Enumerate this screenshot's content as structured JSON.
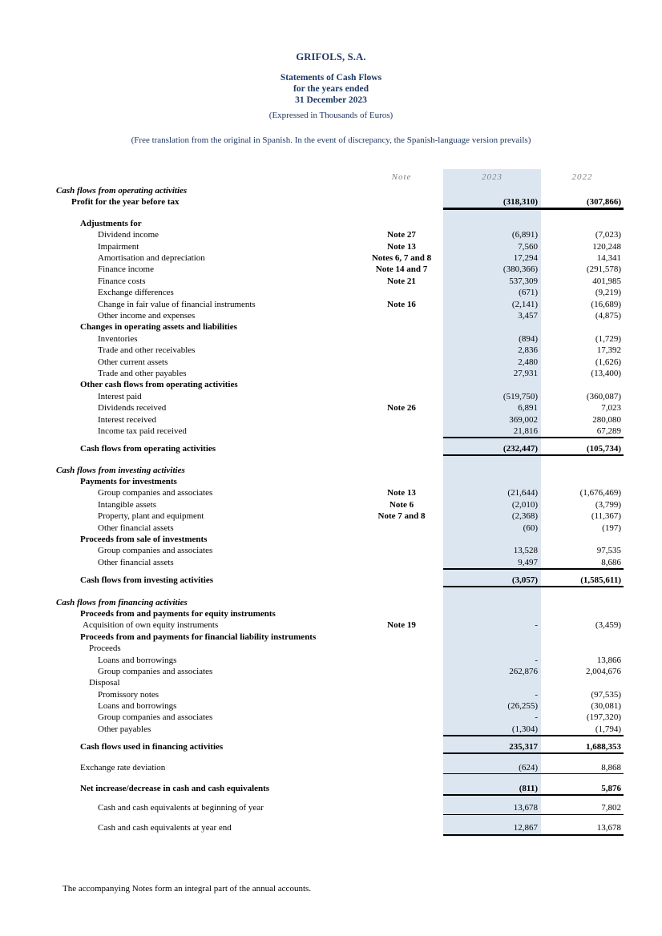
{
  "header": {
    "company": "GRIFOLS, S.A.",
    "title_line1": "Statements of Cash Flows",
    "title_line2": "for the years ended",
    "title_line3": "31 December 2023",
    "units_note": "(Expressed in Thousands of Euros)",
    "translation_note": "(Free translation from the original in Spanish. In the event of discrepancy, the Spanish-language version prevails)"
  },
  "footer": {
    "text": "The accompanying Notes form an integral part of the annual accounts."
  },
  "colors": {
    "heading_navy": "#1f3864",
    "column_2023_highlight": "#dce6f1",
    "column_header_gray": "#7f7f86",
    "body_text": "#000000"
  },
  "table": {
    "columns": [
      "Note",
      "2023",
      "2022"
    ],
    "rows": [
      {
        "label": "Cash flows from operating activities",
        "style": "section",
        "gap": 2
      },
      {
        "label": "Profit for the year before tax",
        "style": "profit",
        "v2023": "(318,310)",
        "v2022": "(307,866)",
        "rule": "thick"
      },
      {
        "label": "Adjustments for",
        "style": "subhead",
        "gap": 10
      },
      {
        "label": "Dividend income",
        "note": "Note 27",
        "style": "item",
        "v2023": "(6,891)",
        "v2022": "(7,023)"
      },
      {
        "label": "Impairment",
        "note": "Note 13",
        "style": "item",
        "v2023": "7,560",
        "v2022": "120,248"
      },
      {
        "label": "Amortisation and depreciation",
        "note": "Notes 6, 7 and 8",
        "style": "item",
        "v2023": "17,294",
        "v2022": "14,341"
      },
      {
        "label": "Finance income",
        "note": "Note 14 and 7",
        "style": "item",
        "v2023": "(380,366)",
        "v2022": "(291,578)"
      },
      {
        "label": "Finance costs",
        "note": "Note 21",
        "style": "item",
        "v2023": "537,309",
        "v2022": "401,985"
      },
      {
        "label": "Exchange differences",
        "style": "item",
        "v2023": "(671)",
        "v2022": "(9,219)"
      },
      {
        "label": "Change in fair value of financial instruments",
        "note": "Note 16",
        "style": "item",
        "v2023": "(2,141)",
        "v2022": "(16,689)"
      },
      {
        "label": "Other income and expenses",
        "style": "item",
        "v2023": "3,457",
        "v2022": "(4,875)"
      },
      {
        "label": "Changes in operating assets and liabilities",
        "style": "subhead"
      },
      {
        "label": "Inventories",
        "style": "item",
        "v2023": "(894)",
        "v2022": "(1,729)"
      },
      {
        "label": "Trade and other receivables",
        "style": "item",
        "v2023": "2,836",
        "v2022": "17,392"
      },
      {
        "label": "Other current assets",
        "style": "item",
        "v2023": "2,480",
        "v2022": "(1,626)"
      },
      {
        "label": "Trade and other payables",
        "style": "item",
        "v2023": "27,931",
        "v2022": "(13,400)"
      },
      {
        "label": "Other cash flows from operating activities",
        "style": "subhead"
      },
      {
        "label": "Interest paid",
        "style": "item",
        "v2023": "(519,750)",
        "v2022": "(360,087)"
      },
      {
        "label": "Dividends received",
        "note": "Note 26",
        "style": "item",
        "v2023": "6,891",
        "v2022": "7,023"
      },
      {
        "label": "Interest received",
        "style": "item",
        "v2023": "369,002",
        "v2022": "280,080"
      },
      {
        "label": "Income tax paid received",
        "style": "item",
        "v2023": "21,816",
        "v2022": "67,289",
        "rule": "thin"
      },
      {
        "label": "Cash flows from operating activities",
        "style": "total",
        "v2023": "(232,447)",
        "v2022": "(105,734)",
        "gap": 6,
        "rule": "thick"
      },
      {
        "label": "Cash flows from investing activities",
        "style": "section",
        "gap": 10
      },
      {
        "label": "Payments for investments",
        "style": "subhead"
      },
      {
        "label": "Group companies and associates",
        "note": "Note 13",
        "style": "item",
        "v2023": "(21,644)",
        "v2022": "(1,676,469)"
      },
      {
        "label": "Intangible assets",
        "note": "Note 6",
        "style": "item",
        "v2023": "(2,010)",
        "v2022": "(3,799)"
      },
      {
        "label": "Property, plant and equipment",
        "note": "Note 7 and 8",
        "style": "item",
        "v2023": "(2,368)",
        "v2022": "(11,367)"
      },
      {
        "label": "Other financial assets",
        "style": "item",
        "v2023": "(60)",
        "v2022": "(197)"
      },
      {
        "label": "Proceeds from sale of investments",
        "style": "subhead"
      },
      {
        "label": "Group companies and associates",
        "style": "item",
        "v2023": "13,528",
        "v2022": "97,535"
      },
      {
        "label": "Other financial assets",
        "style": "item",
        "v2023": "9,497",
        "v2022": "8,686",
        "rule": "thin"
      },
      {
        "label": "Cash flows from investing activities",
        "style": "total",
        "v2023": "(3,057)",
        "v2022": "(1,585,611)",
        "gap": 6,
        "rule": "thick"
      },
      {
        "label": "Cash flows from financing activities",
        "style": "section",
        "gap": 11
      },
      {
        "label": "Proceeds from and payments for equity instruments",
        "style": "subhead"
      },
      {
        "label": "Acquisition of own equity instruments",
        "note": "Note 19",
        "style": "acq",
        "v2023": "-",
        "v2022": "(3,459)"
      },
      {
        "label": "Proceeds from and payments for financial liability instruments",
        "style": "subhead"
      },
      {
        "label": "Proceeds",
        "style": "sub"
      },
      {
        "label": "Loans and borrowings",
        "style": "item",
        "v2023": "-",
        "v2022": "13,866"
      },
      {
        "label": "Group companies and associates",
        "style": "item",
        "v2023": "262,876",
        "v2022": "2,004,676"
      },
      {
        "label": "Disposal",
        "style": "sub"
      },
      {
        "label": "Promissory notes",
        "style": "item",
        "v2023": "-",
        "v2022": "(97,535)"
      },
      {
        "label": "Loans and borrowings",
        "style": "item",
        "v2023": "(26,255)",
        "v2022": "(30,081)"
      },
      {
        "label": "Group companies and associates",
        "style": "item",
        "v2023": "-",
        "v2022": "(197,320)"
      },
      {
        "label": "Other payables",
        "style": "item",
        "v2023": "(1,304)",
        "v2022": "(1,794)",
        "rule": "thin"
      },
      {
        "label": "Cash flows used in financing activities",
        "style": "total",
        "v2023": "235,317",
        "v2022": "1,688,353",
        "gap": 6,
        "rule": "thick"
      },
      {
        "label": "Exchange rate deviation",
        "style": "plain",
        "v2023": "(624)",
        "v2022": "8,868",
        "gap": 9,
        "rule": "thin"
      },
      {
        "label": "Net increase/decrease in cash and cash equivalents",
        "style": "total",
        "v2023": "(811)",
        "v2022": "5,876",
        "gap": 10,
        "rule": "thick"
      },
      {
        "label": "Cash and cash equivalents at beginning of year",
        "style": "item",
        "v2023": "13,678",
        "v2022": "7,802",
        "gap": 8,
        "rule": "thin"
      },
      {
        "label": "Cash and cash equivalents at year end",
        "style": "item",
        "v2023": "12,867",
        "v2022": "13,678",
        "gap": 9,
        "rule": "thick"
      }
    ]
  }
}
